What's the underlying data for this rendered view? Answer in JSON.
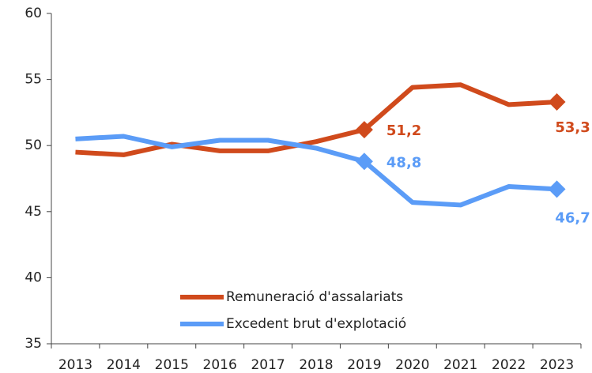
{
  "chart_data": {
    "type": "line",
    "categories": [
      "2013",
      "2014",
      "2015",
      "2016",
      "2017",
      "2018",
      "2019",
      "2020",
      "2021",
      "2022",
      "2023"
    ],
    "series": [
      {
        "name": "Remuneració d'assalariats",
        "color": "#d04a1c",
        "values": [
          49.5,
          49.3,
          50.1,
          49.6,
          49.6,
          50.3,
          51.2,
          54.4,
          54.6,
          53.1,
          53.3
        ],
        "value_labels": [
          null,
          null,
          null,
          null,
          null,
          null,
          "51,2",
          null,
          null,
          null,
          "53,3"
        ]
      },
      {
        "name": "Excedent brut d'explotació",
        "color": "#5b9cf7",
        "values": [
          50.5,
          50.7,
          49.9,
          50.4,
          50.4,
          49.8,
          48.8,
          45.7,
          45.5,
          46.9,
          46.7
        ],
        "value_labels": [
          null,
          null,
          null,
          null,
          null,
          null,
          "48,8",
          null,
          null,
          null,
          "46,7"
        ]
      }
    ],
    "ylim": [
      35,
      60
    ],
    "yticks": [
      35,
      40,
      45,
      50,
      55,
      60
    ],
    "grid": false,
    "legend": "bottom"
  }
}
